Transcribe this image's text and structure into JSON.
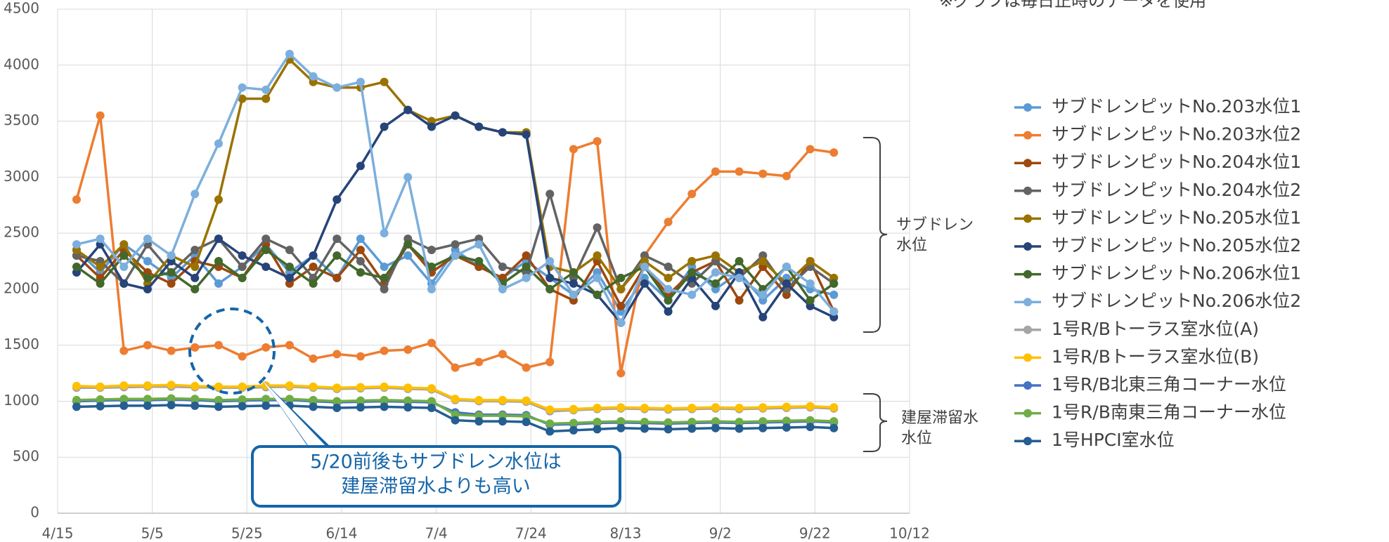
{
  "chart_data": {
    "type": "line",
    "note": "※グラフは毎日正時のデータを使用",
    "bracket_labels": [
      [
        "サブドレン",
        "水位"
      ],
      [
        "建屋滞留水",
        "水位"
      ]
    ],
    "callout": [
      "5/20前後もサブドレン水位は",
      "建屋滞留水よりも高い"
    ],
    "x": [
      "4/19",
      "4/24",
      "4/29",
      "5/4",
      "5/9",
      "5/14",
      "5/19",
      "5/24",
      "5/29",
      "6/3",
      "6/8",
      "6/13",
      "6/18",
      "6/23",
      "6/28",
      "7/3",
      "7/8",
      "7/13",
      "7/18",
      "7/23",
      "7/28",
      "8/2",
      "8/7",
      "8/12",
      "8/17",
      "8/22",
      "8/27",
      "9/1",
      "9/6",
      "9/11",
      "9/16",
      "9/21",
      "9/26"
    ],
    "xlim": [
      "4/15",
      "10/12"
    ],
    "xticks": [
      "4/15",
      "5/5",
      "5/25",
      "6/14",
      "7/4",
      "7/24",
      "8/13",
      "9/2",
      "9/22",
      "10/12"
    ],
    "ylim": [
      0,
      4500
    ],
    "yticks": [
      0,
      500,
      1000,
      1500,
      2000,
      2500,
      3000,
      3500,
      4000,
      4500
    ],
    "grid": true,
    "legend": "right",
    "series": [
      {
        "name": "サブドレンピットNo.203水位1",
        "color": "#5b9bd5",
        "values": [
          2350,
          2150,
          2400,
          2250,
          2100,
          2300,
          2050,
          2200,
          2400,
          2150,
          2300,
          2100,
          2450,
          2200,
          2300,
          2050,
          2350,
          2200,
          2100,
          2250,
          2100,
          1950,
          2150,
          1800,
          2100,
          1900,
          2200,
          2000,
          2150,
          1900,
          2100,
          2000,
          1950
        ]
      },
      {
        "name": "サブドレンピットNo.203水位2",
        "color": "#ed7d31",
        "values": [
          2800,
          3550,
          1450,
          1500,
          1450,
          1480,
          1500,
          1400,
          1480,
          1500,
          1380,
          1420,
          1400,
          1450,
          1460,
          1520,
          1300,
          1350,
          1420,
          1300,
          1350,
          3250,
          3320,
          1250,
          2300,
          2600,
          2850,
          3050,
          3050,
          3030,
          3010,
          3250,
          3220
        ]
      },
      {
        "name": "サブドレンピットNo.204水位1",
        "color": "#9e480e",
        "values": [
          2300,
          2100,
          2350,
          2150,
          2050,
          2250,
          2200,
          2100,
          2400,
          2050,
          2200,
          2100,
          2350,
          2050,
          2400,
          2150,
          2300,
          2200,
          2100,
          2300,
          2000,
          1900,
          2250,
          1850,
          2200,
          1950,
          2150,
          2250,
          1900,
          2200,
          1950,
          2250,
          1800
        ]
      },
      {
        "name": "サブドレンピットNo.204水位2",
        "color": "#636363",
        "values": [
          2300,
          2250,
          2050,
          2400,
          2150,
          2350,
          2450,
          2200,
          2450,
          2350,
          2100,
          2450,
          2250,
          2000,
          2450,
          2350,
          2400,
          2450,
          2200,
          2150,
          2850,
          2100,
          2550,
          2000,
          2300,
          2200,
          2050,
          2250,
          2100,
          2300,
          2000,
          2200,
          2050
        ]
      },
      {
        "name": "サブドレンピットNo.205水位1",
        "color": "#997300",
        "values": [
          2350,
          2200,
          2400,
          2050,
          2300,
          2200,
          2800,
          3700,
          3700,
          4050,
          3850,
          3800,
          3800,
          3850,
          3600,
          3500,
          3550,
          3450,
          3400,
          3400,
          2200,
          2150,
          2300,
          2000,
          2250,
          2100,
          2250,
          2300,
          2150,
          2250,
          2050,
          2250,
          2100
        ]
      },
      {
        "name": "サブドレンピットNo.205水位2",
        "color": "#264478",
        "values": [
          2150,
          2400,
          2050,
          2000,
          2250,
          2100,
          2450,
          2300,
          2200,
          2100,
          2300,
          2800,
          3100,
          3450,
          3600,
          3450,
          3550,
          3450,
          3400,
          3380,
          2100,
          2050,
          1950,
          1700,
          2050,
          1800,
          2100,
          1850,
          2150,
          1750,
          2050,
          1850,
          1750
        ]
      },
      {
        "name": "サブドレンピットNo.206水位1",
        "color": "#43682b",
        "values": [
          2200,
          2050,
          2300,
          2100,
          2150,
          2000,
          2250,
          2100,
          2350,
          2200,
          2050,
          2300,
          2150,
          2100,
          2400,
          2200,
          2300,
          2250,
          2050,
          2200,
          2000,
          2150,
          1950,
          2100,
          2200,
          1900,
          2150,
          2050,
          2250,
          2000,
          2200,
          1900,
          2050
        ]
      },
      {
        "name": "サブドレンピットNo.206水位2",
        "color": "#7cafdd",
        "values": [
          2400,
          2450,
          2200,
          2450,
          2300,
          2850,
          3300,
          3800,
          3780,
          4100,
          3900,
          3800,
          3850,
          2500,
          3000,
          2000,
          2300,
          2400,
          2000,
          2100,
          2250,
          1950,
          2100,
          1700,
          2200,
          2000,
          1950,
          2150,
          2100,
          1950,
          2200,
          2050,
          1800
        ]
      },
      {
        "name": "1号R/Bトーラス室水位(A)",
        "color": "#a5a5a5",
        "values": [
          1120,
          1120,
          1125,
          1130,
          1130,
          1125,
          1120,
          1120,
          1125,
          1130,
          1120,
          1110,
          1115,
          1120,
          1110,
          1105,
          1010,
          1000,
          1000,
          995,
          910,
          920,
          930,
          935,
          930,
          925,
          930,
          935,
          930,
          935,
          940,
          945,
          935
        ]
      },
      {
        "name": "1号R/Bトーラス室水位(B)",
        "color": "#ffc000",
        "values": [
          1135,
          1130,
          1140,
          1140,
          1145,
          1135,
          1130,
          1130,
          1140,
          1140,
          1130,
          1120,
          1125,
          1130,
          1120,
          1115,
          1020,
          1010,
          1010,
          1005,
          925,
          930,
          940,
          945,
          940,
          935,
          940,
          945,
          940,
          945,
          950,
          955,
          945
        ]
      },
      {
        "name": "1号R/B北東三角コーナー水位",
        "color": "#4472c4",
        "values": [
          1000,
          1005,
          1010,
          1010,
          1015,
          1010,
          1000,
          1005,
          1010,
          1010,
          1000,
          990,
          995,
          1000,
          995,
          990,
          900,
          880,
          880,
          875,
          790,
          795,
          805,
          810,
          805,
          800,
          805,
          810,
          805,
          810,
          815,
          820,
          810
        ]
      },
      {
        "name": "1号R/B南東三角コーナー水位",
        "color": "#70ad47",
        "values": [
          1010,
          1015,
          1020,
          1020,
          1025,
          1020,
          1010,
          1015,
          1020,
          1020,
          1010,
          1000,
          1005,
          1010,
          1005,
          1000,
          880,
          870,
          870,
          865,
          800,
          805,
          815,
          820,
          815,
          810,
          815,
          820,
          815,
          820,
          825,
          830,
          820
        ]
      },
      {
        "name": "1号HPCI室水位",
        "color": "#255e91",
        "values": [
          950,
          955,
          960,
          960,
          965,
          960,
          950,
          955,
          960,
          960,
          950,
          940,
          945,
          950,
          945,
          940,
          830,
          820,
          820,
          815,
          730,
          740,
          750,
          760,
          755,
          750,
          755,
          760,
          755,
          760,
          765,
          770,
          760
        ]
      }
    ]
  }
}
